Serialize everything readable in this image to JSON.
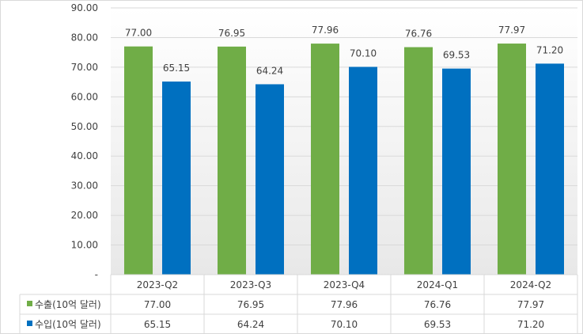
{
  "chart_data": {
    "type": "bar",
    "categories": [
      "2023-Q2",
      "2023-Q3",
      "2023-Q4",
      "2024-Q1",
      "2024-Q2"
    ],
    "series": [
      {
        "name": "수출(10억 달러)",
        "values": [
          77.0,
          76.95,
          77.96,
          76.76,
          77.97
        ],
        "labels": [
          "77.00",
          "76.95",
          "77.96",
          "76.76",
          "77.97"
        ],
        "color": "#70AD47"
      },
      {
        "name": "수입(10억 달러)",
        "values": [
          65.15,
          64.24,
          70.1,
          69.53,
          71.2
        ],
        "labels": [
          "65.15",
          "64.24",
          "70.10",
          "69.53",
          "71.20"
        ],
        "color": "#0070C0"
      }
    ],
    "y_ticks": [
      "-",
      "10.00",
      "20.00",
      "30.00",
      "40.00",
      "50.00",
      "60.00",
      "70.00",
      "80.00",
      "90.00"
    ],
    "ylim": [
      0,
      90
    ],
    "grid": true,
    "legend": "data-table-left"
  }
}
